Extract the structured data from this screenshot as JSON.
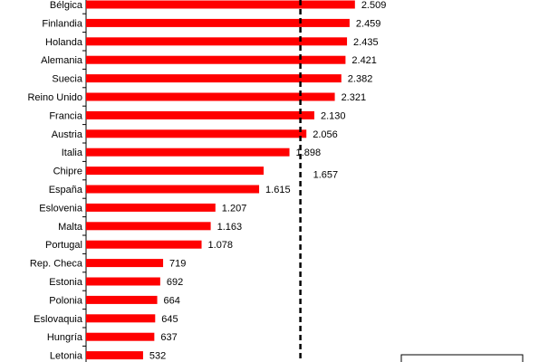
{
  "chart_data": {
    "type": "bar",
    "orientation": "horizontal",
    "categories": [
      "Bélgica",
      "Finlandia",
      "Holanda",
      "Alemania",
      "Suecia",
      "Reino Unido",
      "Francia",
      "Austria",
      "Italia",
      "Chipre",
      "España",
      "Eslovenia",
      "Malta",
      "Portugal",
      "Rep. Checa",
      "Estonia",
      "Polonia",
      "Eslovaquia",
      "Hungría",
      "Letonia"
    ],
    "values": [
      2509,
      2459,
      2435,
      2421,
      2382,
      2321,
      2130,
      2056,
      1898,
      1657,
      1615,
      1207,
      1163,
      1078,
      719,
      692,
      664,
      645,
      637,
      532
    ],
    "value_labels": [
      "2.509",
      "2.459",
      "2.435",
      "2.421",
      "2.382",
      "2.321",
      "2.130",
      "2.056",
      "1.898",
      "1.657",
      "1.615",
      "1.207",
      "1.163",
      "1.078",
      "719",
      "692",
      "664",
      "645",
      "637",
      "532"
    ],
    "reference_line": {
      "value": 2000,
      "style": "dashed"
    },
    "grid": false,
    "colors": {
      "bar": "#ff0000",
      "reference_line": "#000000",
      "axis": "#000000"
    }
  }
}
